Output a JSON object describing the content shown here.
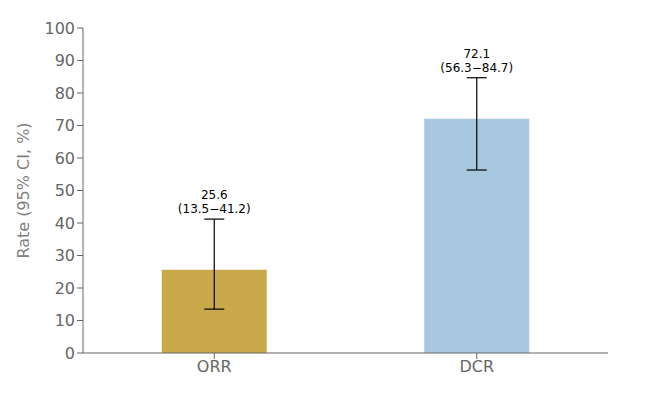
{
  "chart_data": {
    "type": "bar",
    "categories": [
      "ORR",
      "DCR"
    ],
    "values": [
      25.6,
      72.1
    ],
    "ci_lower": [
      13.5,
      56.3
    ],
    "ci_upper": [
      41.2,
      84.7
    ],
    "colors": [
      "#C9A84C",
      "#A8C8E0"
    ],
    "annotations": [
      [
        "25.6",
        "(13.5−41.2)"
      ],
      [
        "72.1",
        "(56.3−84.7)"
      ]
    ],
    "ylabel": "Rate (95% CI, %)",
    "ylim": [
      0,
      100
    ],
    "yticks": [
      0,
      10,
      20,
      30,
      40,
      50,
      60,
      70,
      80,
      90,
      100
    ],
    "grid": false
  }
}
